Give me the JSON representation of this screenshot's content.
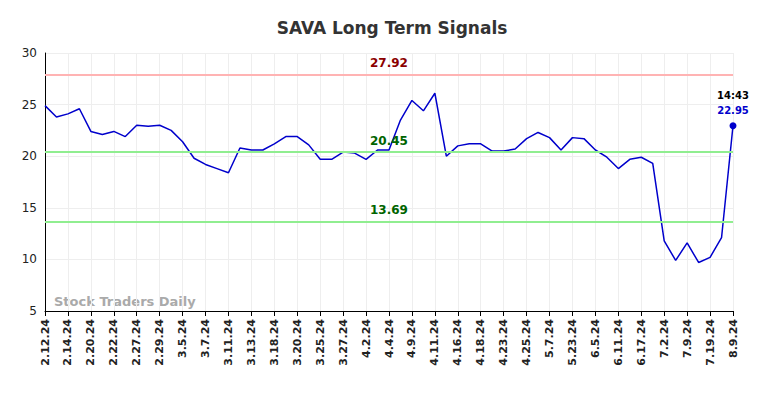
{
  "chart_data": {
    "type": "line",
    "title": "SAVA Long Term Signals",
    "watermark": "Stock Traders Daily",
    "categories": [
      "2.12.24",
      null,
      "2.14.24",
      null,
      "2.20.24",
      null,
      "2.22.24",
      null,
      "2.27.24",
      null,
      "2.29.24",
      null,
      "3.5.24",
      null,
      "3.7.24",
      null,
      "3.11.24",
      null,
      "3.13.24",
      null,
      "3.18.24",
      null,
      "3.20.24",
      null,
      "3.25.24",
      null,
      "3.27.24",
      null,
      "4.2.24",
      null,
      "4.4.24",
      null,
      "4.9.24",
      null,
      "4.11.24",
      null,
      "4.16.24",
      null,
      "4.18.24",
      null,
      "4.23.24",
      null,
      "4.25.24",
      null,
      "5.7.24",
      null,
      "5.23.24",
      null,
      "6.5.24",
      null,
      "6.11.24",
      null,
      "6.17.24",
      null,
      "7.2.24",
      null,
      "7.9.24",
      null,
      "7.19.24",
      null,
      "8.9.24"
    ],
    "values": [
      24.9,
      23.8,
      24.1,
      24.6,
      22.4,
      22.1,
      22.4,
      21.9,
      23.0,
      22.9,
      23.0,
      22.5,
      21.4,
      19.8,
      19.2,
      18.8,
      18.4,
      20.8,
      20.6,
      20.6,
      21.2,
      21.9,
      21.9,
      21.1,
      19.7,
      19.7,
      20.4,
      20.3,
      19.7,
      20.6,
      20.6,
      23.5,
      25.4,
      24.4,
      26.1,
      20.0,
      21.0,
      21.2,
      21.2,
      20.5,
      20.5,
      20.7,
      21.7,
      22.3,
      21.8,
      20.6,
      21.8,
      21.7,
      20.6,
      19.9,
      18.8,
      19.7,
      19.9,
      19.3,
      11.8,
      9.9,
      11.6,
      9.7,
      10.2,
      12.1,
      22.95
    ],
    "color": "#0000cc",
    "reference_lines": [
      {
        "value": 27.92,
        "color": "#ffb3b3"
      },
      {
        "value": 20.45,
        "color": "#90ee90"
      },
      {
        "value": 13.69,
        "color": "#90ee90"
      }
    ],
    "annotations": [
      {
        "text": "14:43"
      }
    ],
    "ylim": [
      5,
      30
    ],
    "yticks": [
      5,
      10,
      15,
      20,
      25,
      30
    ],
    "grid": true
  }
}
